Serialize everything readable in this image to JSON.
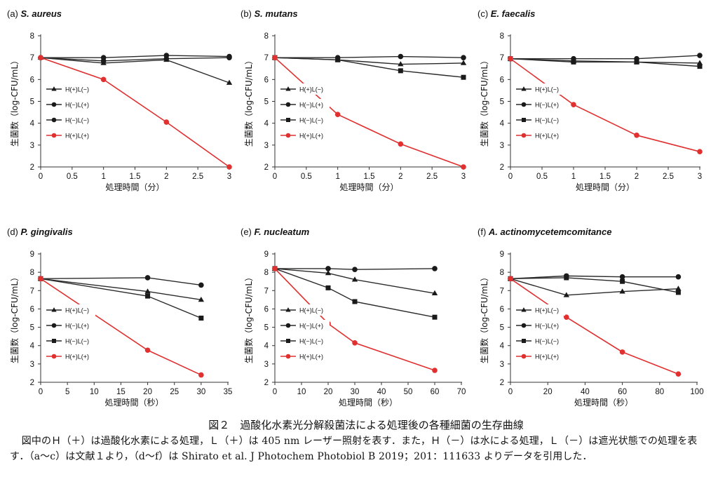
{
  "chart_data": [
    {
      "type": "line",
      "panel": "(a)",
      "title": "S. aureus",
      "xlabel": "処理時間（分）",
      "ylabel": "生菌数（log-CFU/mL）",
      "xlim": [
        0,
        3
      ],
      "ylim": [
        2,
        8
      ],
      "xticks": [
        "0",
        "0.5",
        "1",
        "1.5",
        "2",
        "2.5",
        "3"
      ],
      "yticks": [
        "2",
        "3",
        "4",
        "5",
        "6",
        "7",
        "8"
      ],
      "x": [
        0,
        1,
        2,
        3
      ],
      "series": [
        {
          "name": "H(+)L(−)",
          "marker": "triangle",
          "color": "#1a1a1a",
          "values": [
            7.0,
            6.75,
            6.9,
            5.85
          ]
        },
        {
          "name": "H(−)L(+)",
          "marker": "circle",
          "color": "#1a1a1a",
          "values": [
            7.0,
            7.0,
            7.1,
            7.05
          ]
        },
        {
          "name": "H(−)L(−)",
          "marker": "circle",
          "color": "#1a1a1a",
          "values": [
            7.0,
            6.85,
            6.95,
            7.0
          ]
        },
        {
          "name": "H(+)L(+)",
          "marker": "circle",
          "color": "#e03030",
          "values": [
            7.0,
            6.0,
            4.05,
            2.0
          ]
        }
      ]
    },
    {
      "type": "line",
      "panel": "(b)",
      "title": "S. mutans",
      "xlabel": "処理時間（分）",
      "ylabel": "生菌数（log-CFU/mL）",
      "xlim": [
        0,
        3
      ],
      "ylim": [
        2,
        8
      ],
      "xticks": [
        "0",
        "0.5",
        "1",
        "1.5",
        "2",
        "2.5",
        "3"
      ],
      "yticks": [
        "2",
        "3",
        "4",
        "5",
        "6",
        "7",
        "8"
      ],
      "x": [
        0,
        1,
        2,
        3
      ],
      "series": [
        {
          "name": "H(+)L(−)",
          "marker": "triangle",
          "color": "#1a1a1a",
          "values": [
            7.0,
            6.9,
            6.7,
            6.75
          ]
        },
        {
          "name": "H(−)L(+)",
          "marker": "circle",
          "color": "#1a1a1a",
          "values": [
            7.0,
            7.0,
            7.05,
            7.0
          ]
        },
        {
          "name": "H(−)L(−)",
          "marker": "square",
          "color": "#1a1a1a",
          "values": [
            7.0,
            6.9,
            6.4,
            6.1
          ]
        },
        {
          "name": "H(+)L(+)",
          "marker": "circle",
          "color": "#e03030",
          "values": [
            7.0,
            4.4,
            3.05,
            2.0
          ]
        }
      ]
    },
    {
      "type": "line",
      "panel": "(c)",
      "title": "E. faecalis",
      "xlabel": "処理時間（分）",
      "ylabel": "生菌数（log-CFU/mL）",
      "xlim": [
        0,
        3
      ],
      "ylim": [
        2,
        8
      ],
      "xticks": [
        "0",
        "0.5",
        "1",
        "1.5",
        "2",
        "2.5",
        "3"
      ],
      "yticks": [
        "2",
        "3",
        "4",
        "5",
        "6",
        "7",
        "8"
      ],
      "x": [
        0,
        1,
        2,
        3
      ],
      "series": [
        {
          "name": "H(+)L(−)",
          "marker": "triangle",
          "color": "#1a1a1a",
          "values": [
            6.95,
            6.85,
            6.8,
            6.75
          ]
        },
        {
          "name": "H(−)L(+)",
          "marker": "circle",
          "color": "#1a1a1a",
          "values": [
            6.95,
            6.95,
            6.95,
            7.1
          ]
        },
        {
          "name": "H(−)L(−)",
          "marker": "square",
          "color": "#1a1a1a",
          "values": [
            6.95,
            6.8,
            6.8,
            6.6
          ]
        },
        {
          "name": "H(+)L(+)",
          "marker": "circle",
          "color": "#e03030",
          "values": [
            6.95,
            4.85,
            3.45,
            2.7
          ]
        }
      ]
    },
    {
      "type": "line",
      "panel": "(d)",
      "title": "P. gingivalis",
      "xlabel": "処理時間（秒）",
      "ylabel": "生菌数（log-CFU/mL）",
      "xlim": [
        0,
        35
      ],
      "ylim": [
        2,
        9
      ],
      "xticks": [
        "0",
        "5",
        "10",
        "15",
        "20",
        "25",
        "30",
        "35"
      ],
      "yticks": [
        "2",
        "3",
        "4",
        "5",
        "6",
        "7",
        "8",
        "9"
      ],
      "x": [
        0,
        20,
        30
      ],
      "series": [
        {
          "name": "H(+)L(−)",
          "marker": "triangle",
          "color": "#1a1a1a",
          "values": [
            7.65,
            6.95,
            6.5
          ]
        },
        {
          "name": "H(−)L(+)",
          "marker": "circle",
          "color": "#1a1a1a",
          "values": [
            7.65,
            7.7,
            7.3
          ]
        },
        {
          "name": "H(−)L(−)",
          "marker": "square",
          "color": "#1a1a1a",
          "values": [
            7.65,
            6.7,
            5.5
          ]
        },
        {
          "name": "H(+)L(+)",
          "marker": "circle",
          "color": "#e03030",
          "values": [
            7.65,
            3.75,
            2.4
          ]
        }
      ]
    },
    {
      "type": "line",
      "panel": "(e)",
      "title": "F. nucleatum",
      "xlabel": "処理時間（秒）",
      "ylabel": "生菌数（log-CFU/mL）",
      "xlim": [
        0,
        70
      ],
      "ylim": [
        2,
        9
      ],
      "xticks": [
        "0",
        "10",
        "20",
        "30",
        "40",
        "50",
        "60",
        "70"
      ],
      "yticks": [
        "2",
        "3",
        "4",
        "5",
        "6",
        "7",
        "8",
        "9"
      ],
      "x": [
        0,
        20,
        30,
        60
      ],
      "series": [
        {
          "name": "H(+)L(−)",
          "marker": "triangle",
          "color": "#1a1a1a",
          "values": [
            8.2,
            7.95,
            7.6,
            6.85
          ]
        },
        {
          "name": "H(−)L(+)",
          "marker": "circle",
          "color": "#1a1a1a",
          "values": [
            8.2,
            8.2,
            8.15,
            8.2
          ]
        },
        {
          "name": "H(−)L(−)",
          "marker": "square",
          "color": "#1a1a1a",
          "values": [
            8.2,
            7.15,
            6.4,
            5.55
          ]
        },
        {
          "name": "H(+)L(+)",
          "marker": "circle",
          "color": "#e03030",
          "values": [
            8.2,
            5.2,
            4.15,
            2.65
          ]
        }
      ]
    },
    {
      "type": "line",
      "panel": "(f)",
      "title": "A. actinomycetemcomitance",
      "xlabel": "処理時間（秒）",
      "ylabel": "生菌数（log-CFU/mL）",
      "xlim": [
        0,
        100
      ],
      "ylim": [
        2,
        9
      ],
      "xticks": [
        "0",
        "20",
        "40",
        "60",
        "80",
        "100"
      ],
      "yticks": [
        "2",
        "3",
        "4",
        "5",
        "6",
        "7",
        "8",
        "9"
      ],
      "x": [
        0,
        30,
        60,
        90
      ],
      "series": [
        {
          "name": "H(+)L(−)",
          "marker": "triangle",
          "color": "#1a1a1a",
          "values": [
            7.65,
            6.75,
            6.95,
            7.1
          ]
        },
        {
          "name": "H(−)L(+)",
          "marker": "circle",
          "color": "#1a1a1a",
          "values": [
            7.65,
            7.8,
            7.75,
            7.75
          ]
        },
        {
          "name": "H(−)L(−)",
          "marker": "square",
          "color": "#1a1a1a",
          "values": [
            7.65,
            7.7,
            7.5,
            6.9
          ]
        },
        {
          "name": "H(+)L(+)",
          "marker": "circle",
          "color": "#e03030",
          "values": [
            7.65,
            5.55,
            3.65,
            2.45
          ]
        }
      ]
    }
  ],
  "caption": {
    "title": "図２　過酸化水素光分解殺菌法による処理後の各種細菌の生存曲線",
    "body": "図中のＨ（＋）は過酸化水素による処理，Ｌ（＋）は 405 nm レーザー照射を表す．また，Ｈ（－）は水による処理，Ｌ（－）は遮光状態での処理を表す．（a～c）は文献１より，（d～f）は Shirato et al. J Photochem Photobiol B 2019；201：111633 よりデータを引用した．"
  }
}
